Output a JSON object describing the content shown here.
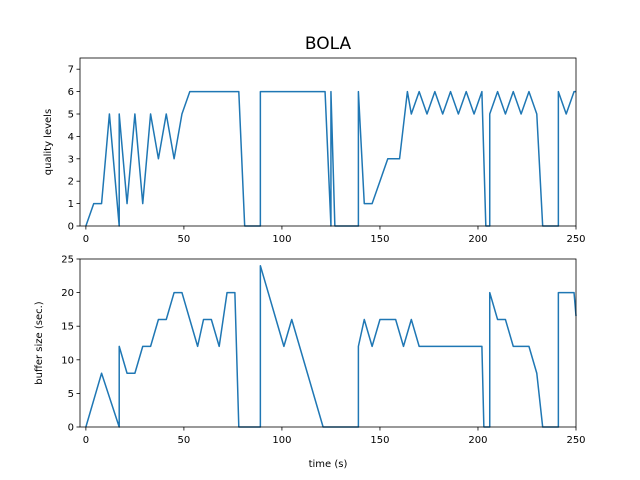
{
  "chart_data": [
    {
      "type": "line",
      "title": "BOLA",
      "xlabel": "",
      "ylabel": "quality levels",
      "xlim": [
        -3,
        250
      ],
      "ylim": [
        0,
        7.5
      ],
      "xticks": [
        0,
        50,
        100,
        150,
        200,
        250
      ],
      "yticks": [
        0,
        1,
        2,
        3,
        4,
        5,
        6,
        7
      ],
      "grid": false,
      "color": "#1f77b4",
      "series": [
        {
          "x": [
            0,
            4,
            8,
            12,
            17,
            17,
            21,
            25,
            29,
            33,
            37,
            41,
            45,
            49,
            53,
            57,
            60,
            64,
            68,
            72,
            76,
            78,
            81,
            85,
            89,
            89,
            93,
            97,
            101,
            105,
            109,
            113,
            117,
            120,
            121,
            122,
            125,
            125,
            127,
            130,
            139,
            139,
            142,
            146,
            150,
            154,
            156,
            158,
            160,
            164,
            166,
            170,
            174,
            178,
            182,
            186,
            190,
            194,
            198,
            202,
            204,
            206,
            206,
            210,
            214,
            218,
            222,
            226,
            230,
            233,
            237,
            241,
            241,
            245,
            249,
            250
          ],
          "y": [
            0,
            1,
            1,
            5,
            0,
            5,
            1,
            5,
            1,
            5,
            3,
            5,
            3,
            5,
            6,
            6,
            6,
            6,
            6,
            6,
            6,
            6,
            0,
            0,
            0,
            6,
            6,
            6,
            6,
            6,
            6,
            6,
            6,
            6,
            6,
            6,
            0,
            6,
            0,
            0,
            0,
            6,
            1,
            1,
            2,
            3,
            3,
            3,
            3,
            6,
            5,
            6,
            5,
            6,
            5,
            6,
            5,
            6,
            5,
            6,
            0,
            0,
            5,
            6,
            5,
            6,
            5,
            6,
            5,
            0,
            0,
            0,
            6,
            5,
            6,
            6
          ]
        }
      ]
    },
    {
      "type": "line",
      "title": "",
      "xlabel": "time (s)",
      "ylabel": "buffer size (sec.)",
      "xlim": [
        -3,
        250
      ],
      "ylim": [
        0,
        25
      ],
      "xticks": [
        0,
        50,
        100,
        150,
        200,
        250
      ],
      "yticks": [
        0,
        5,
        10,
        15,
        20,
        25
      ],
      "grid": false,
      "color": "#1f77b4",
      "series": [
        {
          "x": [
            0,
            8,
            17,
            17,
            21,
            25,
            29,
            33,
            37,
            41,
            45,
            49,
            53,
            57,
            60,
            64,
            68,
            72,
            76,
            78,
            81,
            85,
            89,
            89,
            93,
            97,
            101,
            105,
            109,
            113,
            117,
            121,
            125,
            129,
            133,
            137,
            139,
            139,
            142,
            146,
            150,
            154,
            158,
            162,
            166,
            170,
            174,
            178,
            182,
            186,
            190,
            194,
            198,
            202,
            203,
            206,
            206,
            210,
            214,
            218,
            222,
            226,
            230,
            233,
            237,
            241,
            241,
            245,
            249,
            250
          ],
          "y": [
            0,
            8,
            0,
            12,
            8,
            8,
            12,
            12,
            16,
            16,
            20,
            20,
            16,
            12,
            16,
            16,
            12,
            20,
            20,
            0,
            0,
            0,
            0,
            24,
            20,
            16,
            12,
            16,
            12,
            8,
            4,
            0,
            0,
            0,
            0,
            0,
            0,
            12,
            16,
            12,
            16,
            16,
            16,
            12,
            16,
            12,
            12,
            12,
            12,
            12,
            12,
            12,
            12,
            12,
            0,
            0,
            20,
            16,
            16,
            12,
            12,
            12,
            8,
            0,
            0,
            0,
            20,
            20,
            20,
            16.5
          ]
        }
      ]
    }
  ]
}
